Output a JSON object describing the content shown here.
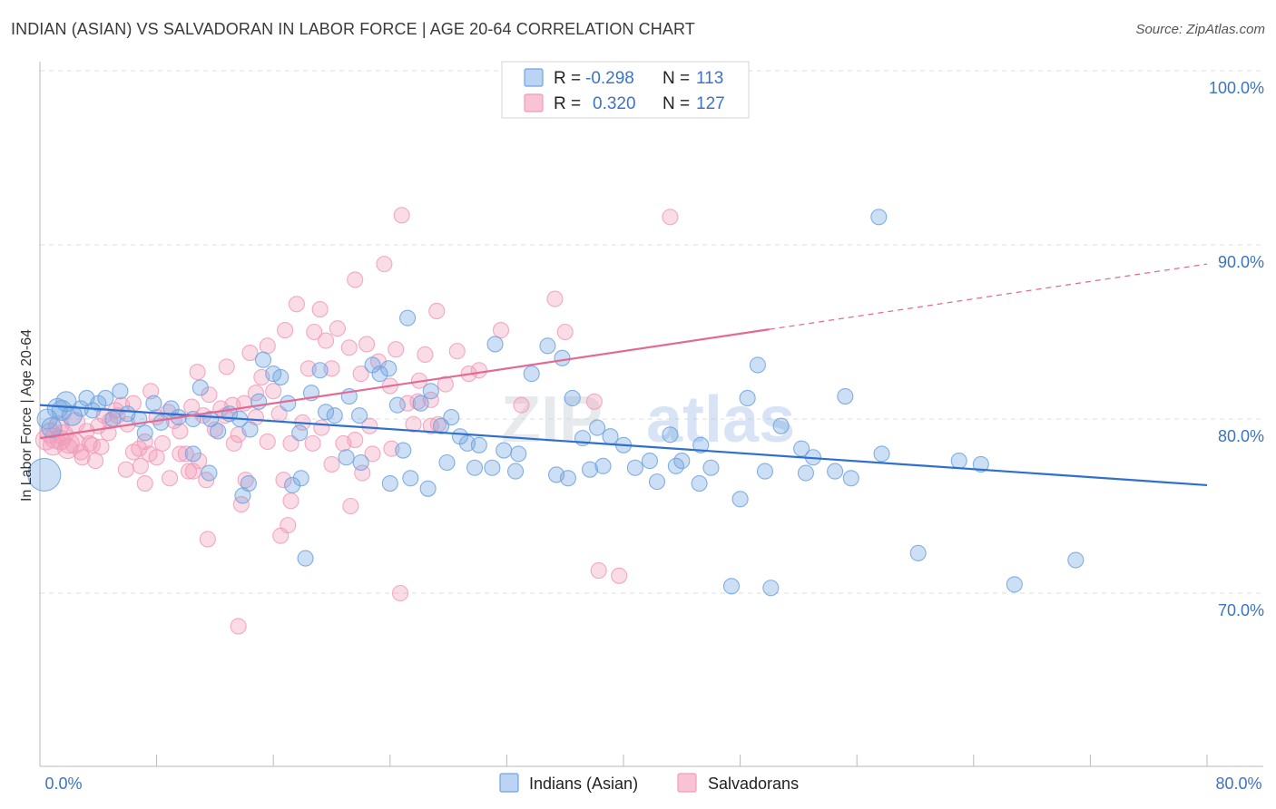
{
  "header": {
    "title": "INDIAN (ASIAN) VS SALVADORAN IN LABOR FORCE | AGE 20-64 CORRELATION CHART",
    "source": "Source: ZipAtlas.com"
  },
  "watermark": {
    "part1": "ZIP",
    "part2": "atlas"
  },
  "legend": {
    "rows": [
      {
        "r_label": "R =",
        "r_value": "-0.298",
        "n_label": "N =",
        "n_value": "113"
      },
      {
        "r_label": "R =",
        "r_value": "0.320",
        "n_label": "N =",
        "n_value": "127"
      }
    ]
  },
  "bottom_legend": {
    "series1": "Indians (Asian)",
    "series2": "Salvadorans"
  },
  "chart_data": {
    "type": "scatter",
    "title": "INDIAN (ASIAN) VS SALVADORAN IN LABOR FORCE | AGE 20-64 CORRELATION CHART",
    "ylabel": "In Labor Force | Age 20-64",
    "xlabel": "",
    "xlim": [
      0,
      80
    ],
    "ylim": [
      60,
      102
    ],
    "x_tick_labels": [
      "0.0%",
      "80.0%"
    ],
    "y_ticks": [
      70,
      80,
      90,
      100
    ],
    "y_tick_labels": [
      "70.0%",
      "80.0%",
      "90.0%",
      "100.0%"
    ],
    "grid": true,
    "legend_placement": "top-center",
    "colors": {
      "series1": "#6fa3e0",
      "series2": "#f29bb8",
      "trend1": "#2f6fce",
      "trend2": "#e36a95",
      "axis_text": "#3b73c9"
    },
    "series": [
      {
        "name": "Indians (Asian)",
        "r": -0.298,
        "n": 113,
        "trend": {
          "x": [
            0,
            80
          ],
          "y": [
            80.8,
            76.2
          ],
          "dashed_from": null
        },
        "points": [
          [
            0.3,
            76.8
          ],
          [
            0.5,
            80.0
          ],
          [
            0.8,
            79.5
          ],
          [
            1.2,
            80.6
          ],
          [
            1.5,
            80.5
          ],
          [
            1.8,
            81.0
          ],
          [
            2.2,
            80.2
          ],
          [
            2.8,
            80.6
          ],
          [
            3.2,
            81.2
          ],
          [
            3.6,
            80.5
          ],
          [
            4.0,
            80.9
          ],
          [
            4.5,
            81.2
          ],
          [
            5.0,
            80.0
          ],
          [
            5.5,
            81.6
          ],
          [
            6.0,
            80.3
          ],
          [
            6.8,
            80.0
          ],
          [
            7.2,
            79.2
          ],
          [
            7.8,
            80.9
          ],
          [
            8.3,
            79.8
          ],
          [
            9.0,
            80.6
          ],
          [
            9.5,
            80.1
          ],
          [
            10.5,
            80.0
          ],
          [
            11.0,
            81.8
          ],
          [
            11.7,
            80.0
          ],
          [
            12.2,
            79.3
          ],
          [
            13.0,
            80.3
          ],
          [
            13.7,
            80.0
          ],
          [
            14.4,
            79.4
          ],
          [
            15.0,
            81.0
          ],
          [
            15.3,
            83.4
          ],
          [
            16.0,
            82.6
          ],
          [
            16.5,
            82.4
          ],
          [
            17.0,
            80.9
          ],
          [
            17.8,
            79.2
          ],
          [
            18.6,
            81.5
          ],
          [
            19.2,
            82.8
          ],
          [
            19.6,
            80.4
          ],
          [
            20.2,
            80.2
          ],
          [
            21.2,
            81.3
          ],
          [
            21.9,
            80.2
          ],
          [
            22.8,
            83.1
          ],
          [
            23.3,
            82.6
          ],
          [
            23.9,
            82.9
          ],
          [
            24.5,
            80.8
          ],
          [
            25.2,
            85.8
          ],
          [
            26.1,
            80.9
          ],
          [
            26.8,
            81.6
          ],
          [
            27.5,
            79.6
          ],
          [
            28.2,
            80.1
          ],
          [
            28.8,
            79.0
          ],
          [
            29.3,
            78.6
          ],
          [
            30.1,
            78.5
          ],
          [
            31.2,
            84.3
          ],
          [
            31.8,
            78.2
          ],
          [
            32.8,
            78.0
          ],
          [
            34.8,
            84.2
          ],
          [
            35.8,
            83.5
          ],
          [
            36.5,
            81.2
          ],
          [
            37.2,
            78.9
          ],
          [
            38.2,
            79.5
          ],
          [
            39.1,
            79.0
          ],
          [
            40.0,
            78.5
          ],
          [
            41.8,
            77.6
          ],
          [
            43.2,
            79.1
          ],
          [
            44.0,
            77.6
          ],
          [
            45.3,
            78.5
          ],
          [
            46.0,
            77.2
          ],
          [
            48.0,
            75.4
          ],
          [
            48.5,
            81.2
          ],
          [
            49.2,
            83.1
          ],
          [
            49.7,
            77.0
          ],
          [
            50.8,
            79.6
          ],
          [
            52.2,
            78.3
          ],
          [
            53.0,
            77.8
          ],
          [
            54.5,
            77.0
          ],
          [
            55.2,
            81.3
          ],
          [
            57.5,
            91.6
          ],
          [
            60.2,
            72.3
          ],
          [
            63.0,
            77.6
          ],
          [
            64.5,
            77.4
          ],
          [
            66.8,
            70.5
          ],
          [
            71.0,
            71.9
          ],
          [
            10.5,
            78.0
          ],
          [
            11.6,
            76.9
          ],
          [
            13.9,
            75.6
          ],
          [
            14.3,
            76.3
          ],
          [
            17.3,
            76.2
          ],
          [
            17.9,
            76.6
          ],
          [
            18.2,
            72.0
          ],
          [
            21.0,
            77.8
          ],
          [
            22.0,
            77.5
          ],
          [
            24.0,
            76.3
          ],
          [
            25.4,
            76.6
          ],
          [
            26.6,
            76.0
          ],
          [
            27.9,
            77.5
          ],
          [
            29.8,
            77.2
          ],
          [
            31.0,
            77.2
          ],
          [
            32.6,
            77.0
          ],
          [
            35.4,
            76.8
          ],
          [
            36.2,
            76.6
          ],
          [
            37.7,
            77.1
          ],
          [
            38.6,
            77.3
          ],
          [
            40.8,
            77.2
          ],
          [
            42.3,
            76.4
          ],
          [
            43.6,
            77.3
          ],
          [
            45.2,
            76.3
          ],
          [
            47.4,
            70.4
          ],
          [
            50.1,
            70.3
          ],
          [
            52.5,
            76.9
          ],
          [
            55.6,
            76.6
          ],
          [
            57.7,
            78.0
          ],
          [
            24.9,
            78.2
          ],
          [
            33.7,
            82.6
          ]
        ]
      },
      {
        "name": "Salvadorans",
        "r": 0.32,
        "n": 127,
        "trend": {
          "x": [
            0,
            80
          ],
          "y": [
            78.9,
            88.9
          ],
          "dashed_from": 50
        },
        "points": [
          [
            0.4,
            78.8
          ],
          [
            0.7,
            79.2
          ],
          [
            1.0,
            78.9
          ],
          [
            1.3,
            79.6
          ],
          [
            1.6,
            79.1
          ],
          [
            2.0,
            78.6
          ],
          [
            2.4,
            79.8
          ],
          [
            2.8,
            78.1
          ],
          [
            3.2,
            79.3
          ],
          [
            3.6,
            78.5
          ],
          [
            4.0,
            79.6
          ],
          [
            4.4,
            80.2
          ],
          [
            4.8,
            79.9
          ],
          [
            5.2,
            80.5
          ],
          [
            5.6,
            80.8
          ],
          [
            6.0,
            79.7
          ],
          [
            6.4,
            80.9
          ],
          [
            6.8,
            78.3
          ],
          [
            7.2,
            78.7
          ],
          [
            7.6,
            81.6
          ],
          [
            8.0,
            80.1
          ],
          [
            8.4,
            78.6
          ],
          [
            8.8,
            80.4
          ],
          [
            9.2,
            79.9
          ],
          [
            9.6,
            79.3
          ],
          [
            10.0,
            78.0
          ],
          [
            10.4,
            80.7
          ],
          [
            10.8,
            82.7
          ],
          [
            11.2,
            80.2
          ],
          [
            11.6,
            81.4
          ],
          [
            12.0,
            79.4
          ],
          [
            12.4,
            80.6
          ],
          [
            12.8,
            83.0
          ],
          [
            13.2,
            80.8
          ],
          [
            13.6,
            79.1
          ],
          [
            14.0,
            80.9
          ],
          [
            14.4,
            83.8
          ],
          [
            14.8,
            81.5
          ],
          [
            15.2,
            82.4
          ],
          [
            15.6,
            84.2
          ],
          [
            16.0,
            81.6
          ],
          [
            16.4,
            80.3
          ],
          [
            16.8,
            85.1
          ],
          [
            17.2,
            78.6
          ],
          [
            17.6,
            86.6
          ],
          [
            18.0,
            79.8
          ],
          [
            18.4,
            82.9
          ],
          [
            18.8,
            85.0
          ],
          [
            19.2,
            86.3
          ],
          [
            19.6,
            84.5
          ],
          [
            20.0,
            82.9
          ],
          [
            20.4,
            85.2
          ],
          [
            20.8,
            78.6
          ],
          [
            21.2,
            84.1
          ],
          [
            21.6,
            88.0
          ],
          [
            22.0,
            82.6
          ],
          [
            22.4,
            84.3
          ],
          [
            22.8,
            78.0
          ],
          [
            23.2,
            83.3
          ],
          [
            23.6,
            88.9
          ],
          [
            24.0,
            81.9
          ],
          [
            24.4,
            84.0
          ],
          [
            24.8,
            91.7
          ],
          [
            25.2,
            80.9
          ],
          [
            25.6,
            79.7
          ],
          [
            26.0,
            82.2
          ],
          [
            26.4,
            83.7
          ],
          [
            26.8,
            81.1
          ],
          [
            27.2,
            86.2
          ],
          [
            27.8,
            82.0
          ],
          [
            28.6,
            83.9
          ],
          [
            29.4,
            82.6
          ],
          [
            30.1,
            82.8
          ],
          [
            31.6,
            85.1
          ],
          [
            33.0,
            80.8
          ],
          [
            35.3,
            86.9
          ],
          [
            36.0,
            85.0
          ],
          [
            38.0,
            81.0
          ],
          [
            43.2,
            91.6
          ],
          [
            39.7,
            71.0
          ],
          [
            38.3,
            71.3
          ],
          [
            27.3,
            79.7
          ],
          [
            26.8,
            79.6
          ],
          [
            25.9,
            81.0
          ],
          [
            24.1,
            78.3
          ],
          [
            22.6,
            79.6
          ],
          [
            22.1,
            76.9
          ],
          [
            21.6,
            78.8
          ],
          [
            20.0,
            77.4
          ],
          [
            18.7,
            78.6
          ],
          [
            17.2,
            75.3
          ],
          [
            16.5,
            73.3
          ],
          [
            16.7,
            76.5
          ],
          [
            15.6,
            78.7
          ],
          [
            14.8,
            80.1
          ],
          [
            14.1,
            76.5
          ],
          [
            13.8,
            75.1
          ],
          [
            13.3,
            78.6
          ],
          [
            12.7,
            80.2
          ],
          [
            11.4,
            76.5
          ],
          [
            10.9,
            77.6
          ],
          [
            10.5,
            77.0
          ],
          [
            10.2,
            77.0
          ],
          [
            9.6,
            78.0
          ],
          [
            8.9,
            76.6
          ],
          [
            8.0,
            77.8
          ],
          [
            7.5,
            78.0
          ],
          [
            7.2,
            76.3
          ],
          [
            6.9,
            77.3
          ],
          [
            6.4,
            78.1
          ],
          [
            5.9,
            77.1
          ],
          [
            5.3,
            80.2
          ],
          [
            4.7,
            79.2
          ],
          [
            4.2,
            78.4
          ],
          [
            3.8,
            77.6
          ],
          [
            3.4,
            78.6
          ],
          [
            2.9,
            77.8
          ],
          [
            2.4,
            78.6
          ],
          [
            1.9,
            78.3
          ],
          [
            1.4,
            78.8
          ],
          [
            0.9,
            78.5
          ],
          [
            11.5,
            73.1
          ],
          [
            13.6,
            68.1
          ],
          [
            24.7,
            70.0
          ],
          [
            19.3,
            79.5
          ],
          [
            21.3,
            75.0
          ],
          [
            17.0,
            73.9
          ]
        ]
      }
    ]
  }
}
